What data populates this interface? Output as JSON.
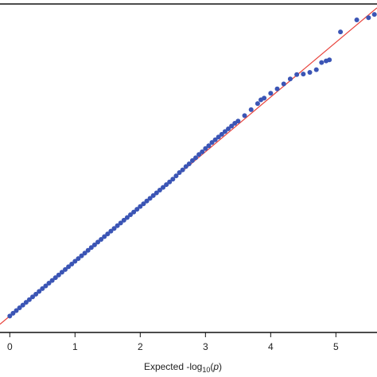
{
  "chart_data": {
    "type": "scatter",
    "xlabel_parts": [
      "Expected -log",
      "10",
      "(",
      "p",
      ")"
    ],
    "xlim": [
      -0.15,
      5.63
    ],
    "ylim": [
      -0.3,
      5.7
    ],
    "xticks": [
      0,
      1,
      2,
      3,
      4,
      5
    ],
    "diagonal": true,
    "diagonal_color": "#e8413a",
    "series": [
      {
        "color": "#3b55b5",
        "x": [
          0.0,
          0.05,
          0.1,
          0.15,
          0.2,
          0.25,
          0.3,
          0.35,
          0.4,
          0.45,
          0.5,
          0.55,
          0.6,
          0.65,
          0.7,
          0.75,
          0.8,
          0.85,
          0.9,
          0.95,
          1.0,
          1.05,
          1.1,
          1.15,
          1.2,
          1.25,
          1.3,
          1.35,
          1.4,
          1.45,
          1.5,
          1.55,
          1.6,
          1.65,
          1.7,
          1.75,
          1.8,
          1.85,
          1.9,
          1.95,
          2.0,
          2.05,
          2.1,
          2.15,
          2.2,
          2.25,
          2.3,
          2.35,
          2.4,
          2.45,
          2.5,
          2.55,
          2.6,
          2.65,
          2.7,
          2.75,
          2.8,
          2.85,
          2.9,
          2.95,
          3.0,
          3.05,
          3.1,
          3.15,
          3.2,
          3.25,
          3.3,
          3.35,
          3.4,
          3.45,
          3.5,
          3.6,
          3.7,
          3.8,
          3.85,
          3.9,
          4.0,
          4.1,
          4.2,
          4.3,
          4.4,
          4.5,
          4.6,
          4.7,
          4.78,
          4.85,
          4.9,
          5.07,
          5.32,
          5.5,
          5.59
        ],
        "values": [
          0.0,
          0.05,
          0.1,
          0.15,
          0.2,
          0.25,
          0.3,
          0.35,
          0.4,
          0.45,
          0.5,
          0.55,
          0.6,
          0.65,
          0.7,
          0.75,
          0.8,
          0.85,
          0.9,
          0.95,
          1.0,
          1.05,
          1.1,
          1.15,
          1.2,
          1.25,
          1.3,
          1.35,
          1.4,
          1.45,
          1.5,
          1.55,
          1.6,
          1.65,
          1.7,
          1.75,
          1.8,
          1.85,
          1.9,
          1.95,
          2.0,
          2.05,
          2.1,
          2.15,
          2.2,
          2.25,
          2.3,
          2.35,
          2.4,
          2.45,
          2.5,
          2.56,
          2.62,
          2.67,
          2.73,
          2.78,
          2.84,
          2.89,
          2.95,
          3.0,
          3.06,
          3.11,
          3.17,
          3.22,
          3.27,
          3.32,
          3.37,
          3.42,
          3.47,
          3.52,
          3.56,
          3.66,
          3.77,
          3.88,
          3.95,
          3.98,
          4.07,
          4.15,
          4.24,
          4.33,
          4.41,
          4.42,
          4.45,
          4.5,
          4.63,
          4.66,
          4.68,
          5.19,
          5.41,
          5.45,
          5.51
        ]
      }
    ]
  }
}
